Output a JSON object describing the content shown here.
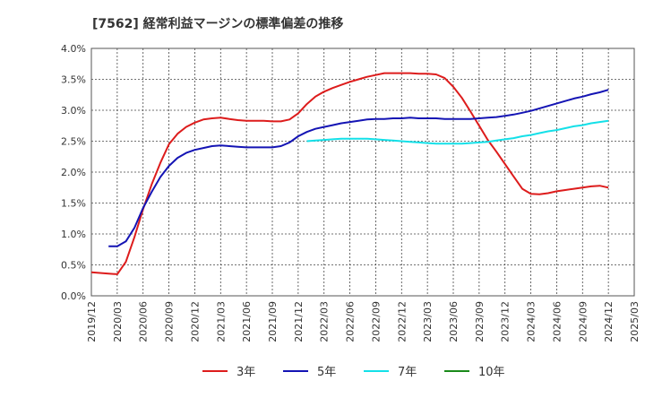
{
  "chart_data": {
    "type": "line",
    "title": "[7562]  経常利益マージンの標準偏差の推移",
    "x_ticks": [
      "2019/12",
      "2020/03",
      "2020/06",
      "2020/09",
      "2020/12",
      "2021/03",
      "2021/06",
      "2021/09",
      "2021/12",
      "2022/03",
      "2022/06",
      "2022/09",
      "2022/12",
      "2023/03",
      "2023/06",
      "2023/09",
      "2023/12",
      "2024/03",
      "2024/06",
      "2024/09",
      "2024/12",
      "2025/03"
    ],
    "y_ticks": [
      "0.0%",
      "0.5%",
      "1.0%",
      "1.5%",
      "2.0%",
      "2.5%",
      "3.0%",
      "3.5%",
      "4.0%"
    ],
    "ylim": [
      0,
      4.0
    ],
    "grid": true,
    "legend_position": "bottom",
    "series": [
      {
        "name": "3年",
        "color": "#dd1c1c",
        "x": [
          "2019/12",
          "2020/01",
          "2020/02",
          "2020/03",
          "2020/04",
          "2020/05",
          "2020/06",
          "2020/07",
          "2020/08",
          "2020/09",
          "2020/10",
          "2020/11",
          "2020/12",
          "2021/01",
          "2021/02",
          "2021/03",
          "2021/04",
          "2021/05",
          "2021/06",
          "2021/07",
          "2021/08",
          "2021/09",
          "2021/10",
          "2021/11",
          "2021/12",
          "2022/01",
          "2022/02",
          "2022/03",
          "2022/04",
          "2022/05",
          "2022/06",
          "2022/07",
          "2022/08",
          "2022/09",
          "2022/10",
          "2022/11",
          "2022/12",
          "2023/01",
          "2023/02",
          "2023/03",
          "2023/04",
          "2023/05",
          "2023/06",
          "2023/07",
          "2023/08",
          "2023/09",
          "2023/10",
          "2023/11",
          "2023/12",
          "2024/01",
          "2024/02",
          "2024/03",
          "2024/04",
          "2024/05",
          "2024/06",
          "2024/07",
          "2024/08",
          "2024/09",
          "2024/10",
          "2024/11",
          "2024/12"
        ],
        "y": [
          0.38,
          0.37,
          0.36,
          0.35,
          0.55,
          0.95,
          1.4,
          1.8,
          2.15,
          2.45,
          2.62,
          2.73,
          2.8,
          2.85,
          2.87,
          2.88,
          2.86,
          2.84,
          2.83,
          2.83,
          2.83,
          2.82,
          2.82,
          2.85,
          2.95,
          3.1,
          3.22,
          3.3,
          3.36,
          3.41,
          3.46,
          3.5,
          3.54,
          3.57,
          3.6,
          3.6,
          3.6,
          3.6,
          3.59,
          3.59,
          3.58,
          3.52,
          3.38,
          3.2,
          2.98,
          2.75,
          2.52,
          2.33,
          2.13,
          1.93,
          1.73,
          1.65,
          1.64,
          1.66,
          1.69,
          1.71,
          1.73,
          1.75,
          1.77,
          1.78,
          1.75
        ]
      },
      {
        "name": "5年",
        "color": "#1414b4",
        "x": [
          "2020/02",
          "2020/03",
          "2020/04",
          "2020/05",
          "2020/06",
          "2020/07",
          "2020/08",
          "2020/09",
          "2020/10",
          "2020/11",
          "2020/12",
          "2021/01",
          "2021/02",
          "2021/03",
          "2021/04",
          "2021/05",
          "2021/06",
          "2021/07",
          "2021/08",
          "2021/09",
          "2021/10",
          "2021/11",
          "2021/12",
          "2022/01",
          "2022/02",
          "2022/03",
          "2022/04",
          "2022/05",
          "2022/06",
          "2022/07",
          "2022/08",
          "2022/09",
          "2022/10",
          "2022/11",
          "2022/12",
          "2023/01",
          "2023/02",
          "2023/03",
          "2023/04",
          "2023/05",
          "2023/06",
          "2023/07",
          "2023/08",
          "2023/09",
          "2023/10",
          "2023/11",
          "2023/12",
          "2024/01",
          "2024/02",
          "2024/03",
          "2024/04",
          "2024/05",
          "2024/06",
          "2024/07",
          "2024/08",
          "2024/09",
          "2024/10",
          "2024/11",
          "2024/12"
        ],
        "y": [
          0.8,
          0.8,
          0.88,
          1.1,
          1.42,
          1.68,
          1.92,
          2.1,
          2.23,
          2.31,
          2.36,
          2.39,
          2.42,
          2.43,
          2.42,
          2.41,
          2.4,
          2.4,
          2.4,
          2.4,
          2.42,
          2.48,
          2.58,
          2.65,
          2.7,
          2.73,
          2.76,
          2.79,
          2.81,
          2.83,
          2.85,
          2.86,
          2.86,
          2.87,
          2.87,
          2.88,
          2.87,
          2.87,
          2.87,
          2.86,
          2.86,
          2.86,
          2.86,
          2.87,
          2.88,
          2.89,
          2.91,
          2.93,
          2.96,
          2.99,
          3.03,
          3.07,
          3.11,
          3.15,
          3.19,
          3.22,
          3.26,
          3.29,
          3.33
        ]
      },
      {
        "name": "7年",
        "color": "#14e0e8",
        "x": [
          "2022/01",
          "2022/02",
          "2022/03",
          "2022/04",
          "2022/05",
          "2022/06",
          "2022/07",
          "2022/08",
          "2022/09",
          "2022/10",
          "2022/11",
          "2022/12",
          "2023/01",
          "2023/02",
          "2023/03",
          "2023/04",
          "2023/05",
          "2023/06",
          "2023/07",
          "2023/08",
          "2023/09",
          "2023/10",
          "2023/11",
          "2023/12",
          "2024/01",
          "2024/02",
          "2024/03",
          "2024/04",
          "2024/05",
          "2024/06",
          "2024/07",
          "2024/08",
          "2024/09",
          "2024/10",
          "2024/11",
          "2024/12"
        ],
        "y": [
          2.5,
          2.51,
          2.52,
          2.53,
          2.54,
          2.54,
          2.54,
          2.54,
          2.53,
          2.52,
          2.51,
          2.5,
          2.49,
          2.48,
          2.47,
          2.46,
          2.46,
          2.46,
          2.46,
          2.47,
          2.48,
          2.49,
          2.51,
          2.53,
          2.55,
          2.58,
          2.6,
          2.63,
          2.66,
          2.68,
          2.71,
          2.74,
          2.76,
          2.79,
          2.81,
          2.83
        ]
      },
      {
        "name": "10年",
        "color": "#1a8a1a",
        "x": [],
        "y": []
      }
    ]
  }
}
